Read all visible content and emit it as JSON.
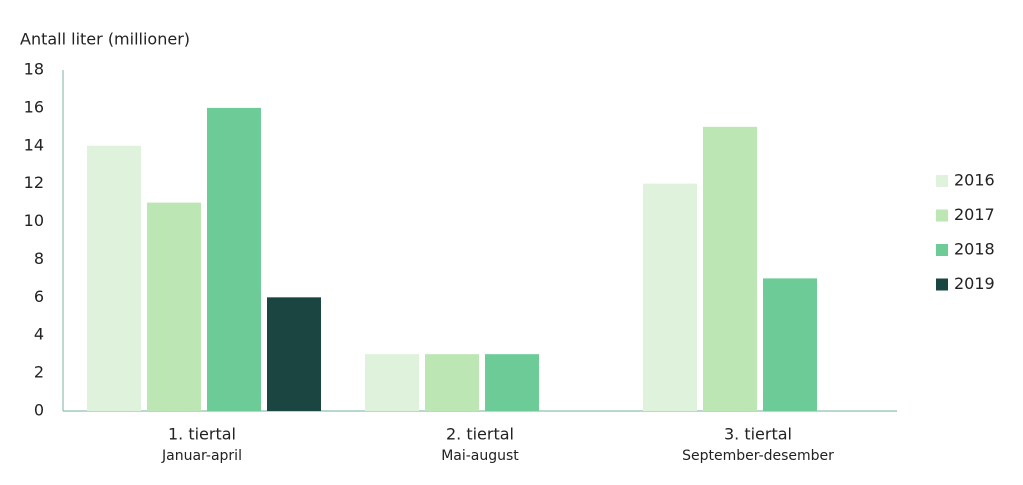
{
  "chart_data": {
    "type": "bar",
    "y_axis_label": "Antall liter (millioner)",
    "categories": [
      "1. tiertal",
      "2. tiertal",
      "3. tiertal"
    ],
    "category_sublabels": [
      "Januar-april",
      "Mai-august",
      "September-desember"
    ],
    "series": [
      {
        "name": "2016",
        "color": "#dff2dc",
        "values": [
          14,
          3,
          12
        ]
      },
      {
        "name": "2017",
        "color": "#bde6b5",
        "values": [
          11,
          3,
          15
        ]
      },
      {
        "name": "2018",
        "color": "#6dcb98",
        "values": [
          16,
          3,
          7
        ]
      },
      {
        "name": "2019",
        "color": "#1b4540",
        "values": [
          6,
          null,
          null
        ]
      }
    ],
    "ylim": [
      0,
      18
    ],
    "yticks": [
      0,
      2,
      4,
      6,
      8,
      10,
      12,
      14,
      16,
      18
    ],
    "grid": false,
    "legend": "right"
  }
}
